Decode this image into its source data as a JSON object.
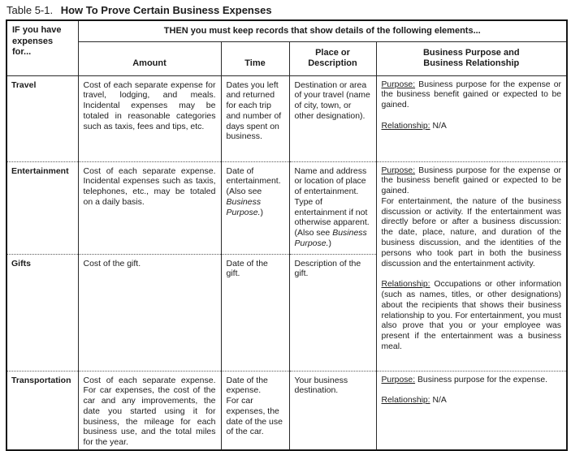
{
  "title": {
    "label": "Table 5-1.",
    "heading": "How To Prove Certain Business Expenses"
  },
  "table": {
    "if_header": "IF you have\nexpenses\nfor...",
    "then_header": "THEN you must keep records that show details of the following elements...",
    "columns": [
      "Amount",
      "Time",
      "Place or\nDescription",
      "Business Purpose and\nBusiness Relationship"
    ],
    "rows": [
      {
        "label": "Travel",
        "amount": "Cost of each separate expense for travel, lodging, and meals. Incidental expenses may be totaled in reasonable categories such as taxis, fees and tips, etc.",
        "time": "Dates you left and returned for each trip and number of days spent on business.",
        "place": "Destination or area of your travel (name of city, town, or other designation).",
        "purpose": [
          {
            "t": "Purpose:",
            "u": true
          },
          {
            "t": " Business purpose for the expense or the business benefit gained or expected to be gained.\n\n"
          },
          {
            "t": "Relationship:",
            "u": true
          },
          {
            "t": " N/A"
          }
        ]
      },
      {
        "label": "Entertainment",
        "amount": "Cost of each separate expense. Incidental expenses such as taxis, telephones, etc., may be totaled on a daily basis.",
        "time": [
          {
            "t": "Date of entertainment. (Also see "
          },
          {
            "t": "Business Purpose.",
            "i": true
          },
          {
            "t": ")"
          }
        ],
        "place": [
          {
            "t": "Name and address or location of place of entertainment. Type of entertainment if not otherwise apparent. (Also see "
          },
          {
            "t": "Business Purpose.",
            "i": true
          },
          {
            "t": ")"
          }
        ],
        "purpose": [
          {
            "t": "Purpose:",
            "u": true
          },
          {
            "t": " Business purpose for the expense or the business benefit gained or expected to be gained.\nFor entertainment, the nature of the business discussion or activity. If the entertainment was directly before or after a business discussion: the date, place, nature, and duration of the business discussion, and the identities of the persons who took part in both the business discussion and the entertainment activity.\n\n"
          },
          {
            "t": "Relationship:",
            "u": true
          },
          {
            "t": " Occupations or other information (such as names, titles, or other designations) about the recipients that shows their business relationship to you. For entertainment, you must also prove that you or your employee was present if the entertainment was a business meal."
          }
        ]
      },
      {
        "label": "Gifts",
        "amount": "Cost of the gift.",
        "time": "Date of the gift.",
        "place": "Description of the gift."
      },
      {
        "label": "Transportation",
        "amount": "Cost of each separate expense. For car expenses, the cost of the car and any improvements, the date you started using it for business, the mileage for each business use, and the total miles for the year.",
        "time": "Date of the expense.\nFor car expenses, the date of the use of the car.",
        "place": "Your business destination.",
        "purpose": [
          {
            "t": "Purpose:",
            "u": true
          },
          {
            "t": " Business purpose for the expense.\n\n"
          },
          {
            "t": "Relationship:",
            "u": true
          },
          {
            "t": " N/A"
          }
        ]
      }
    ]
  }
}
